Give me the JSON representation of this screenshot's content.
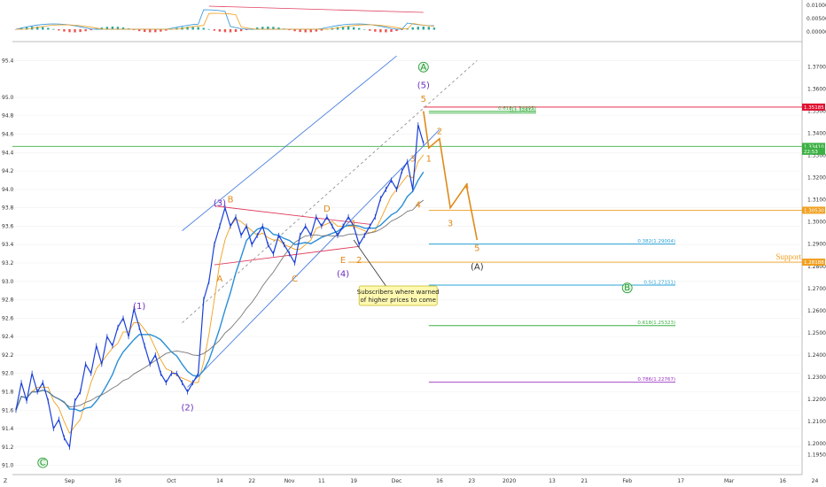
{
  "chart_data": {
    "type": "line",
    "symbol_note": "candlestick price chart with Elliott wave annotations",
    "colors": {
      "price": "#1a3fd6",
      "ma_fast": "#f0a020",
      "ma_mid": "#2a8fd6",
      "ma_slow": "#777777",
      "channel": "#4a7fe0",
      "wave_orange": "#e08a1a",
      "wave_purple": "#6a2fc0",
      "wave_green": "#1f9a30",
      "support": "#f0a020",
      "resistance_line": "#e04060",
      "red_level": "#e01030",
      "green_level": "#3cb043"
    },
    "left_axis": {
      "min": 90.9,
      "max": 95.5,
      "ticks": [
        "95.4",
        "95.0",
        "94.8",
        "94.6",
        "94.4",
        "94.2",
        "94.0",
        "93.8",
        "93.6",
        "93.4",
        "93.2",
        "93.0",
        "92.8",
        "92.6",
        "92.4",
        "92.2",
        "92.0",
        "91.8",
        "91.6",
        "91.4",
        "91.2",
        "91.0"
      ]
    },
    "right_axis": {
      "min": 1.186,
      "max": 1.377,
      "ticks": [
        "1.37000",
        "1.36000",
        "1.35000",
        "1.34000",
        "1.33000",
        "1.32000",
        "1.31000",
        "1.30000",
        "1.29000",
        "1.28000",
        "1.27000",
        "1.26000",
        "1.25000",
        "1.24000",
        "1.23000",
        "1.22000",
        "1.21000",
        "1.20000",
        "1.19500"
      ]
    },
    "oscillator_axis": {
      "ticks": [
        "0.01000",
        "0.00500",
        "0.00000"
      ]
    },
    "x_axis_labels": [
      {
        "label": "Sep",
        "i": 10
      },
      {
        "label": "16",
        "i": 19
      },
      {
        "label": "Oct",
        "i": 29
      },
      {
        "label": "14",
        "i": 38
      },
      {
        "label": "22",
        "i": 44
      },
      {
        "label": "Nov",
        "i": 51
      },
      {
        "label": "11",
        "i": 57
      },
      {
        "label": "19",
        "i": 63
      },
      {
        "label": "Dec",
        "i": 71
      },
      {
        "label": "16",
        "i": 79
      },
      {
        "label": "23",
        "i": 85
      },
      {
        "label": "2020",
        "i": 92
      },
      {
        "label": "13",
        "i": 100
      },
      {
        "label": "21",
        "i": 106
      },
      {
        "label": "Feb",
        "i": 114
      },
      {
        "label": "17",
        "i": 124
      },
      {
        "label": "Mar",
        "i": 133
      },
      {
        "label": "16",
        "i": 143
      },
      {
        "label": "24",
        "i": 149
      },
      {
        "label": "Apr",
        "i": 155
      }
    ],
    "price_series": [
      91.6,
      91.9,
      91.7,
      92.0,
      91.8,
      91.9,
      91.7,
      91.4,
      91.5,
      91.3,
      91.2,
      91.7,
      91.8,
      92.1,
      92.0,
      92.3,
      92.1,
      92.4,
      92.3,
      92.5,
      92.6,
      92.4,
      92.7,
      92.5,
      92.3,
      92.1,
      92.2,
      92.0,
      91.9,
      92.0,
      92.0,
      91.9,
      91.8,
      91.9,
      92.0,
      92.8,
      93.0,
      93.4,
      93.6,
      93.8,
      93.6,
      93.7,
      93.5,
      93.6,
      93.4,
      93.5,
      93.6,
      93.4,
      93.3,
      93.5,
      93.4,
      93.3,
      93.2,
      93.5,
      93.6,
      93.5,
      93.7,
      93.6,
      93.7,
      93.6,
      93.5,
      93.6,
      93.7,
      93.6,
      93.4,
      93.5,
      93.6,
      93.7,
      93.9,
      94.0,
      94.1,
      94.0,
      94.2,
      94.3,
      94.0,
      94.7,
      94.5
    ],
    "levels": [
      {
        "label": "1.35185",
        "value": 1.35185,
        "kind": "red"
      },
      {
        "label": "0.618(1.34993)",
        "value": 1.34993,
        "kind": "fib-green"
      },
      {
        "label": "1(1.34910)",
        "value": 1.3491,
        "kind": "fib-green"
      },
      {
        "label": "1.33410",
        "value": 1.3341,
        "kind": "green"
      },
      {
        "label": "1.30530",
        "value": 1.3053,
        "kind": "orange"
      },
      {
        "label": "0.382(1.29004)",
        "value": 1.29004,
        "kind": "fib-blue"
      },
      {
        "label": "1.28188",
        "value": 1.28188,
        "kind": "support"
      },
      {
        "label": "0.5(1.27151)",
        "value": 1.27151,
        "kind": "fib-blue"
      },
      {
        "label": "0.618(1.25323)",
        "value": 1.25323,
        "kind": "fib-green"
      },
      {
        "label": "0.786(1.22767)",
        "value": 1.22767,
        "kind": "fib-purple"
      }
    ],
    "right_badges": [
      {
        "label": "1.35185",
        "color": "#e01030",
        "value": 1.35185
      },
      {
        "label": "1.33410",
        "color": "#3cb043",
        "value": 1.3341
      },
      {
        "label": "22:53",
        "color": "#3cb043",
        "value": 1.3319
      },
      {
        "label": "1.30530",
        "color": "#f0a020",
        "value": 1.3053
      },
      {
        "label": "1.28188",
        "color": "#f0a020",
        "value": 1.28188
      }
    ],
    "wave_labels": [
      {
        "text": "C",
        "style": "circle-green",
        "i": 5,
        "y": 91.0
      },
      {
        "text": "(1)",
        "style": "purple",
        "i": 23,
        "y": 92.7
      },
      {
        "text": "(2)",
        "style": "purple",
        "i": 32,
        "y": 91.6
      },
      {
        "text": "(3)",
        "style": "purple",
        "i": 38,
        "y": 93.82
      },
      {
        "text": "(4)",
        "style": "purple",
        "i": 61,
        "y": 93.05
      },
      {
        "text": "(5)",
        "style": "purple",
        "i": 76,
        "y": 95.1
      },
      {
        "text": "A",
        "style": "circle-green",
        "i": 76,
        "y": 95.3
      },
      {
        "text": "A",
        "style": "orange",
        "i": 38,
        "y": 93.0
      },
      {
        "text": "B",
        "style": "orange",
        "i": 40,
        "y": 93.86
      },
      {
        "text": "C",
        "style": "orange",
        "i": 52,
        "y": 93.0
      },
      {
        "text": "D",
        "style": "orange",
        "i": 58,
        "y": 93.76
      },
      {
        "text": "E",
        "style": "orange",
        "i": 61,
        "y": 93.2
      },
      {
        "text": "1",
        "style": "orange",
        "i": 63,
        "y": 93.6
      },
      {
        "text": "2",
        "style": "orange",
        "i": 64,
        "y": 93.2
      },
      {
        "text": "3",
        "style": "orange",
        "i": 74,
        "y": 94.3
      },
      {
        "text": "4",
        "style": "orange",
        "i": 75,
        "y": 93.8
      },
      {
        "text": "5",
        "style": "orange",
        "i": 76,
        "y": 94.95
      },
      {
        "text": "1",
        "style": "orange",
        "i": 77,
        "y": 94.3
      },
      {
        "text": "2",
        "style": "orange",
        "i": 79,
        "y": 94.6
      },
      {
        "text": "3",
        "style": "orange",
        "i": 81,
        "y": 93.6
      },
      {
        "text": "4",
        "style": "orange",
        "i": 84,
        "y": 94.0
      },
      {
        "text": "5",
        "style": "orange",
        "i": 86,
        "y": 93.33
      },
      {
        "text": "(A)",
        "style": "dark",
        "i": 86,
        "y": 93.13
      },
      {
        "text": "B",
        "style": "circle-green",
        "i": 114,
        "y": 92.9
      }
    ],
    "projection_path": [
      [
        76,
        94.85
      ],
      [
        77,
        94.45
      ],
      [
        79,
        94.55
      ],
      [
        81,
        93.8
      ],
      [
        84,
        94.05
      ],
      [
        86,
        93.45
      ]
    ],
    "callout": {
      "text_line1": "Subscribers where warned",
      "text_line2": "of higher prices to come"
    },
    "support_label": "Support",
    "small_marks": [
      "Z",
      "8"
    ]
  }
}
